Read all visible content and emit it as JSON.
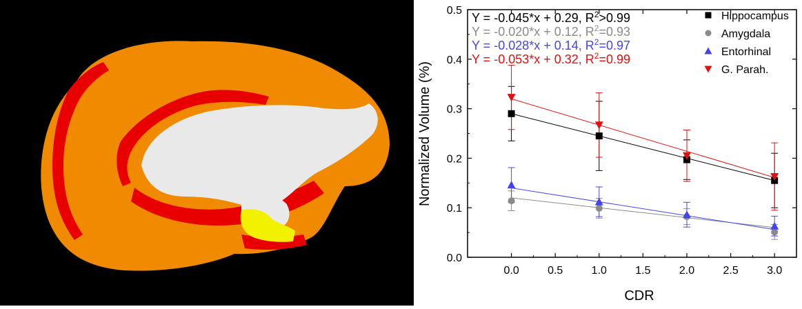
{
  "colors": {
    "background_left": "#000000",
    "cortex": "#f08a00",
    "highlight_red": "#e80000",
    "highlight_yellow": "#f2f200",
    "white_matter": "#e9e9e9",
    "hippocampus": "#000000",
    "amygdala": "#8a8a8a",
    "entorhinal": "#2323e6",
    "parah": "#e01010"
  },
  "brain_image": {
    "regions": [
      "cortex",
      "medial-wall",
      "highlighted-region-red",
      "highlighted-region-yellow"
    ]
  },
  "chart_data": {
    "type": "scatter",
    "xlabel": "CDR",
    "ylabel": "Normalized Volume (%)",
    "xlim": [
      -0.5,
      3.25
    ],
    "ylim": [
      0.0,
      0.5
    ],
    "xticks": [
      "0.0",
      "0.5",
      "1.0",
      "1.5",
      "2.0",
      "2.5",
      "3.0"
    ],
    "yticks": [
      "0.0",
      "0.1",
      "0.2",
      "0.3",
      "0.4",
      "0.5"
    ],
    "legend_position": "top-right",
    "series": [
      {
        "name": "Hippocampus",
        "marker": "square",
        "color": "#000000",
        "x": [
          0,
          1,
          2,
          3
        ],
        "y": [
          0.29,
          0.245,
          0.197,
          0.155
        ],
        "err": [
          0.055,
          0.07,
          0.04,
          0.055
        ],
        "fit": {
          "slope": -0.045,
          "intercept": 0.29
        },
        "equation": {
          "main": "Y = -0.045*x + 0.29, R",
          "sup": "2",
          "tail": ">0.99"
        }
      },
      {
        "name": "Amygdala",
        "marker": "circle",
        "color": "#8a8a8a",
        "x": [
          0,
          1,
          2,
          3
        ],
        "y": [
          0.114,
          0.099,
          0.082,
          0.051
        ],
        "err": [
          0.02,
          0.02,
          0.016,
          0.015
        ],
        "fit": {
          "slope": -0.02,
          "intercept": 0.12
        },
        "equation": {
          "main": "Y = -0.020*x + 0.12, R",
          "sup": "2",
          "tail": "=0.93"
        }
      },
      {
        "name": "Entorhinal",
        "marker": "triangle-up",
        "color": "#4444ee",
        "x": [
          0,
          1,
          2,
          3
        ],
        "y": [
          0.146,
          0.112,
          0.086,
          0.063
        ],
        "err": [
          0.035,
          0.03,
          0.025,
          0.02
        ],
        "fit": {
          "slope": -0.028,
          "intercept": 0.14
        },
        "equation": {
          "main": "Y = -0.028*x + 0.14, R",
          "sup": "2",
          "tail": "=0.97"
        }
      },
      {
        "name": "G. Parah.",
        "marker": "triangle-down",
        "color": "#e01010",
        "x": [
          0,
          1,
          2,
          3
        ],
        "y": [
          0.323,
          0.267,
          0.205,
          0.163
        ],
        "err": [
          0.065,
          0.065,
          0.052,
          0.068
        ],
        "fit": {
          "slope": -0.053,
          "intercept": 0.32
        },
        "equation": {
          "main": "Y = -0.053*x + 0.32, R",
          "sup": "2",
          "tail": "=0.99"
        }
      }
    ]
  }
}
